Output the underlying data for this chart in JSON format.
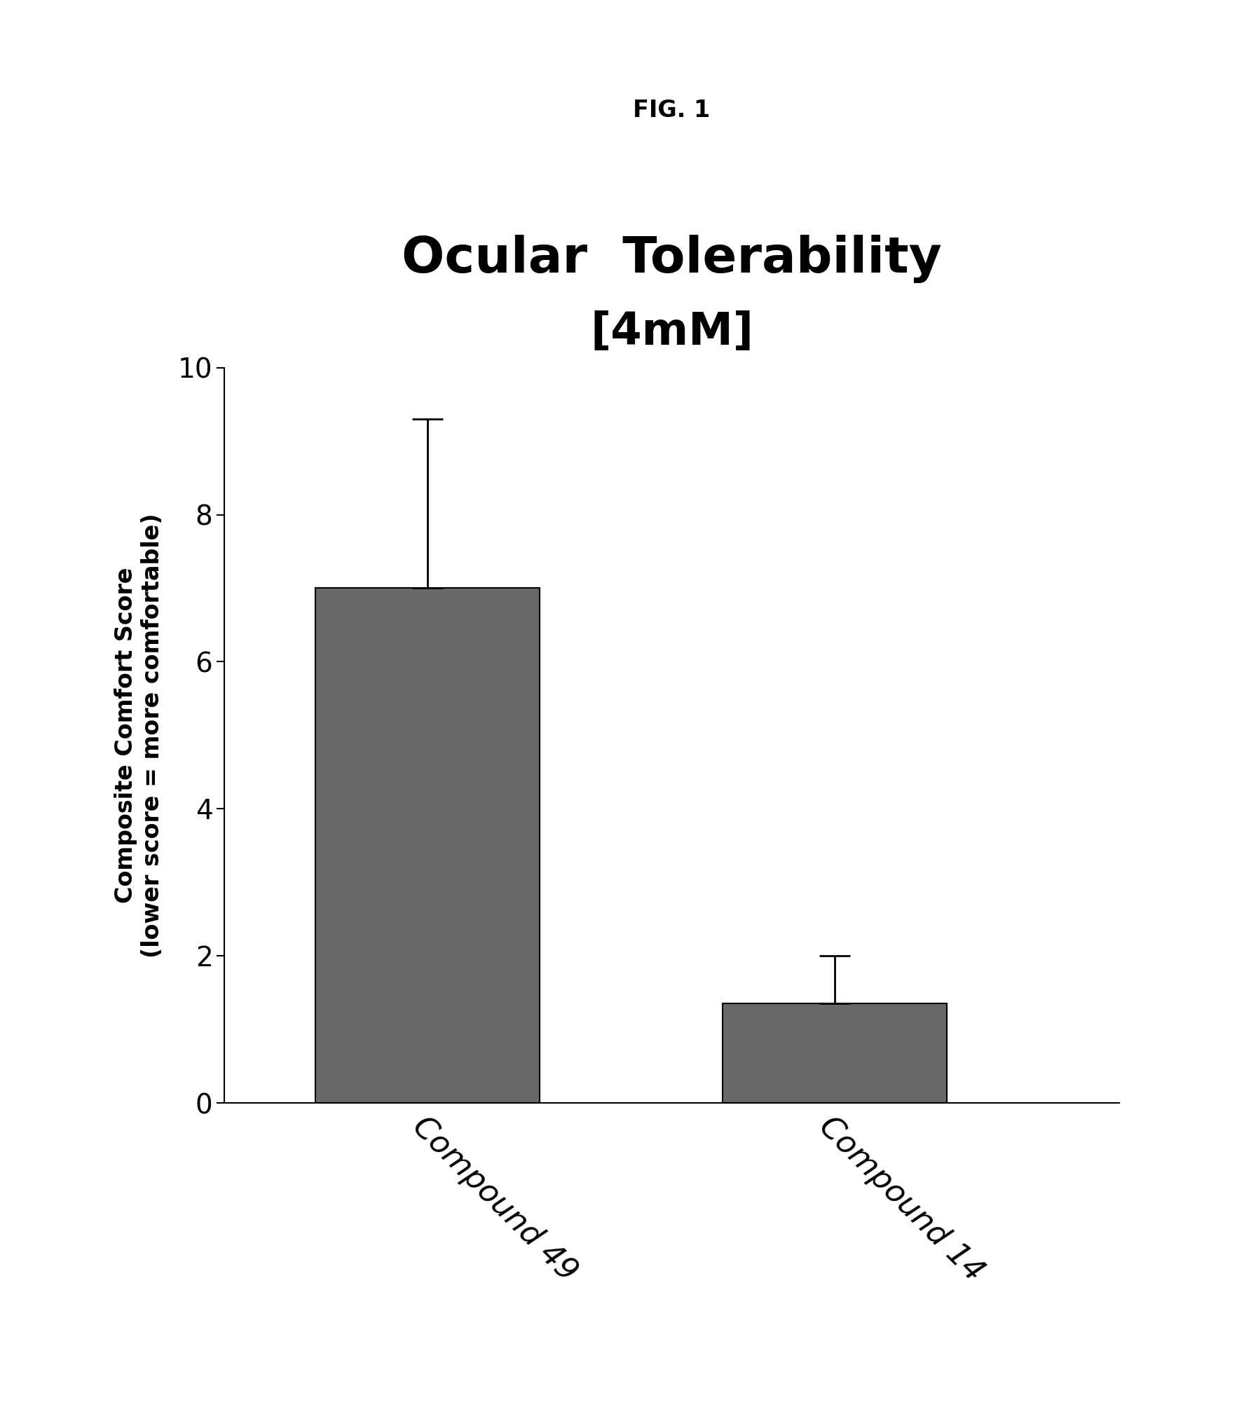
{
  "title_line1": "Ocular  Tolerability",
  "title_line2": "[4mM]",
  "fig_label": "FIG. 1",
  "categories": [
    "Compound 49",
    "Compound 14"
  ],
  "values": [
    7.0,
    1.35
  ],
  "errors_up": [
    2.3,
    0.65
  ],
  "errors_down": [
    0.0,
    0.0
  ],
  "bar_color": "#696969",
  "bar_edge_color": "#000000",
  "ylabel_line1": "Composite Comfort Score",
  "ylabel_line2": "(lower score = more comfortable)",
  "ylim": [
    0,
    10
  ],
  "yticks": [
    0,
    2,
    4,
    6,
    8,
    10
  ],
  "background_color": "#ffffff",
  "title_fontsize": 52,
  "subtitle_fontsize": 46,
  "ylabel_fontsize": 24,
  "tick_fontsize": 28,
  "xlabel_fontsize": 32,
  "fig_label_fontsize": 24,
  "bar_width": 0.55
}
